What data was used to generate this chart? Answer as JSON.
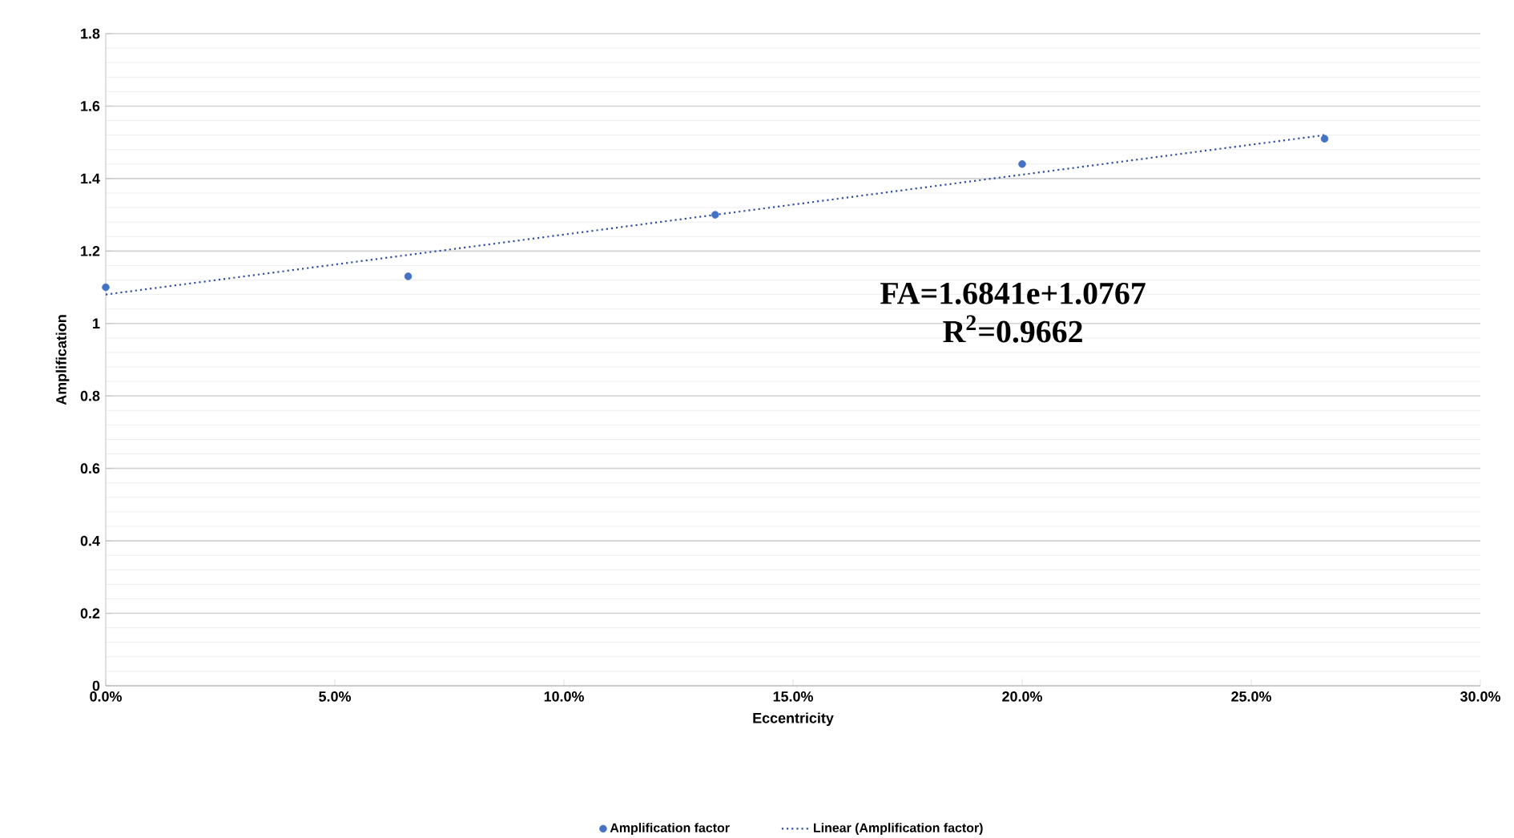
{
  "chart_data": {
    "type": "scatter",
    "xlabel": "Eccentricity",
    "ylabel": "Amplification",
    "xlim": [
      0,
      0.3
    ],
    "ylim": [
      0,
      1.8
    ],
    "xticks": [
      {
        "value": 0,
        "label": "0.0%"
      },
      {
        "value": 0.05,
        "label": "5.0%"
      },
      {
        "value": 0.1,
        "label": "10.0%"
      },
      {
        "value": 0.15,
        "label": "15.0%"
      },
      {
        "value": 0.2,
        "label": "20.0%"
      },
      {
        "value": 0.25,
        "label": "25.0%"
      },
      {
        "value": 0.3,
        "label": "30.0%"
      }
    ],
    "yticks": [
      0,
      0.2,
      0.4,
      0.6,
      0.8,
      1,
      1.2,
      1.4,
      1.6,
      1.8
    ],
    "grid": "y",
    "legend": "bottom",
    "annotations": [
      "FA=1.6841e+1.0767",
      "R$^{2}$=0.9662"
    ],
    "series": [
      {
        "name": "Amplification factor",
        "marker": "circle",
        "color": "#4472c4",
        "x": [
          0,
          0.066,
          0.133,
          0.2,
          0.266
        ],
        "values": [
          1.1,
          1.13,
          1.3,
          1.44,
          1.51
        ]
      },
      {
        "name": "Linear (Amplification factor)",
        "type": "line",
        "marker": "none",
        "line_style": "dotted",
        "color": "#2f4f9f",
        "x": [
          0,
          0.266
        ],
        "values": [
          1.08,
          1.52
        ]
      }
    ]
  }
}
